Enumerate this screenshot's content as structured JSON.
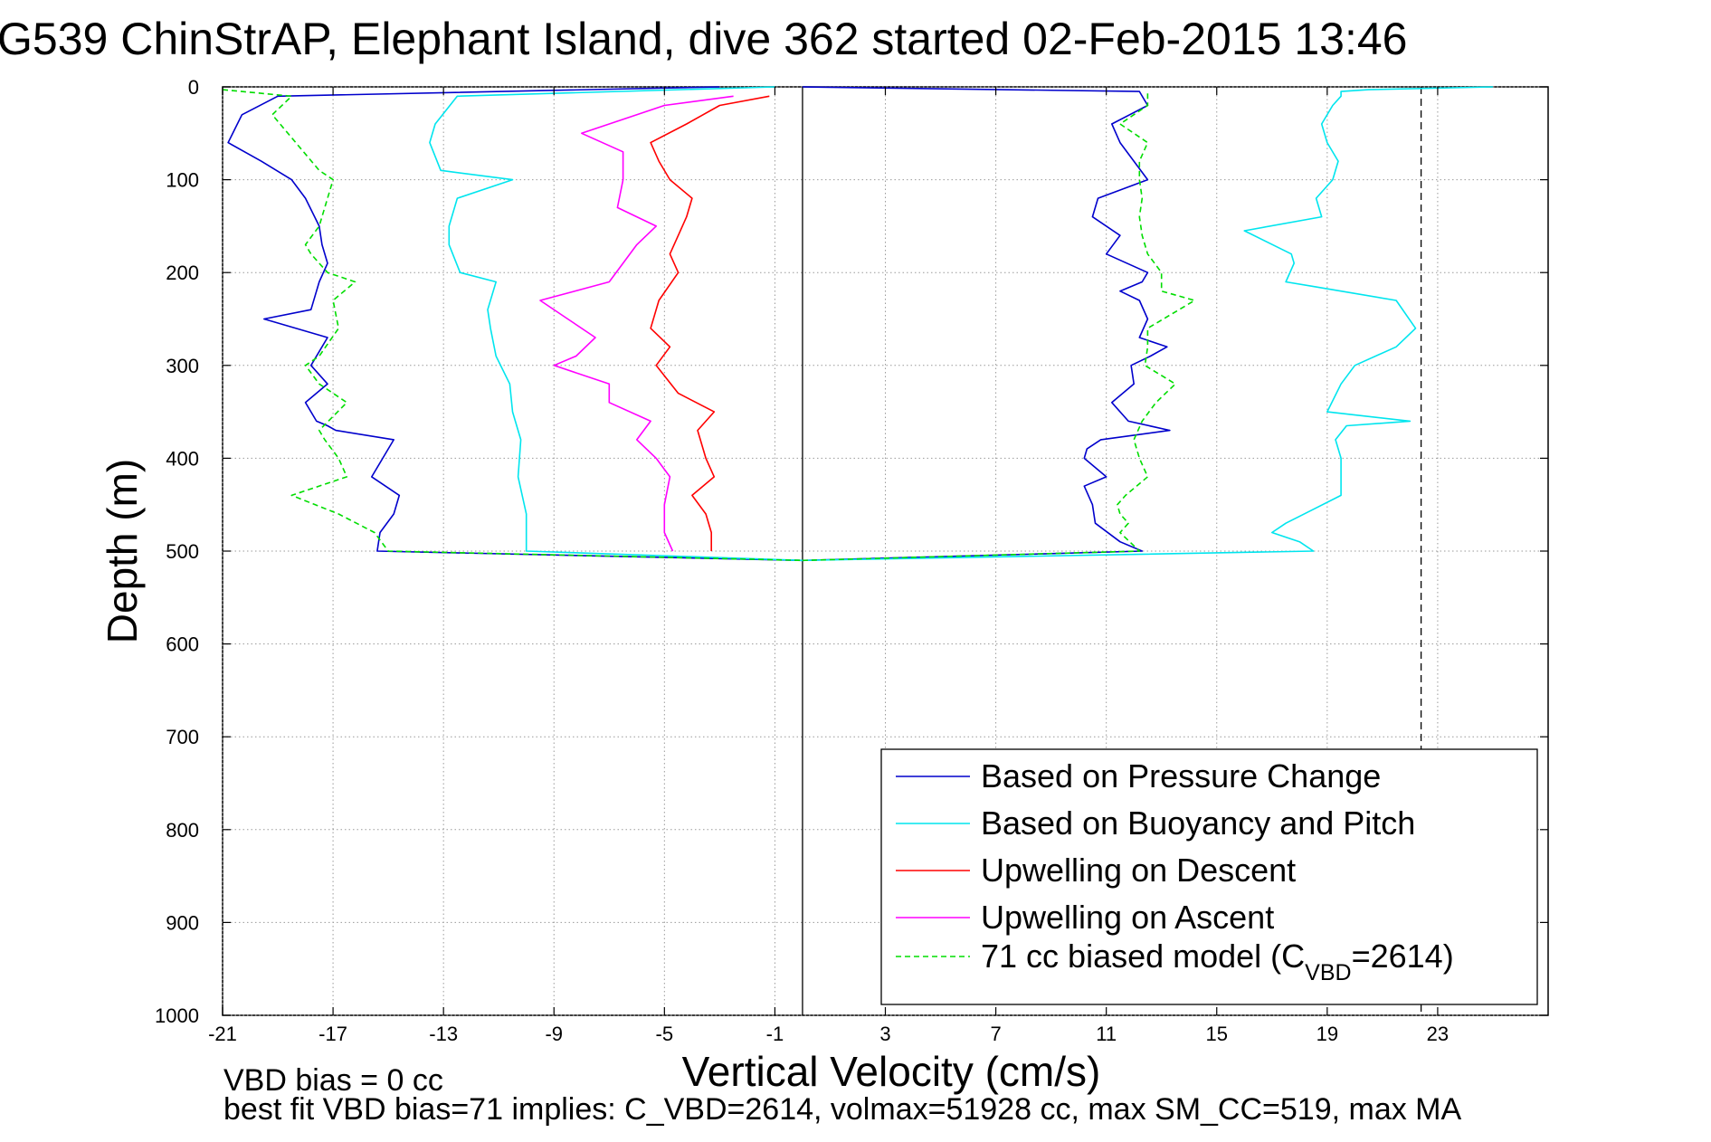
{
  "chart_data": {
    "type": "line",
    "title": "G539 ChinStrAP, Elephant Island, dive 362 started 02-Feb-2015 13:46",
    "xlabel": "Vertical Velocity (cm/s)",
    "ylabel": "Depth (m)",
    "xlim": [
      -21,
      27
    ],
    "ylim": [
      0,
      1000
    ],
    "y_reversed": true,
    "grid": true,
    "xticks": [
      -21,
      -17,
      -13,
      -9,
      -5,
      -1,
      3,
      7,
      11,
      15,
      19,
      23
    ],
    "yticks": [
      0,
      100,
      200,
      300,
      400,
      500,
      600,
      700,
      800,
      900,
      1000
    ],
    "vertical_lines": [
      {
        "x": 0,
        "style": "solid",
        "color": "#000000"
      },
      {
        "x": 22.4,
        "style": "dashed",
        "color": "#000000"
      }
    ],
    "legend_position": "bottom-right",
    "legend": [
      {
        "label": "Based on Pressure Change",
        "color": "#0000cc",
        "dash": false
      },
      {
        "label": "Based on Buoyancy and Pitch",
        "color": "#00e5ee",
        "dash": false
      },
      {
        "label": "Upwelling on Descent",
        "color": "#ff0000",
        "dash": false
      },
      {
        "label": "Upwelling on Ascent",
        "color": "#ff00ff",
        "dash": false
      },
      {
        "label_pre": "71 cc biased model (C",
        "label_sub": "VBD",
        "label_post": "=2614)",
        "color": "#00dd00",
        "dash": true
      }
    ],
    "series": [
      {
        "name": "Based on Pressure Change (descent)",
        "color": "#0000cc",
        "dash": false,
        "x": [
          -3,
          -19,
          -20.3,
          -20.8,
          -19.6,
          -18.5,
          -18,
          -17.5,
          -17.4,
          -17.2,
          -17.5,
          -17.8,
          -19.5,
          -17.2,
          -17.8,
          -17.2,
          -18,
          -17.6,
          -17.2,
          -16.9,
          -14.8,
          -15.2,
          -15.6,
          -14.6,
          -14.8,
          -15.3,
          -15.4,
          0
        ],
        "y": [
          0,
          10,
          30,
          60,
          80,
          100,
          120,
          150,
          170,
          190,
          210,
          240,
          250,
          270,
          300,
          320,
          340,
          360,
          365,
          370,
          380,
          400,
          420,
          440,
          460,
          480,
          500,
          510
        ]
      },
      {
        "name": "Based on Pressure Change (ascent)",
        "color": "#0000cc",
        "dash": false,
        "x": [
          0,
          12.3,
          11.5,
          10.6,
          10.5,
          10.2,
          11,
          10.2,
          10.3,
          10.8,
          13.3,
          11.8,
          11.2,
          12,
          11.9,
          12.6,
          13.2,
          12.2,
          12.5,
          12.2,
          11.5,
          12.3,
          12.5,
          11,
          11.5,
          10.5,
          10.7,
          12.5,
          11.5,
          11.2,
          12.5,
          12.2,
          0
        ],
        "y": [
          510,
          500,
          490,
          470,
          450,
          430,
          420,
          400,
          390,
          380,
          370,
          360,
          340,
          320,
          300,
          290,
          280,
          270,
          250,
          230,
          220,
          210,
          200,
          180,
          160,
          140,
          120,
          100,
          60,
          40,
          20,
          5,
          0
        ]
      },
      {
        "name": "Based on Buoyancy and Pitch (descent)",
        "color": "#00e5ee",
        "dash": false,
        "x": [
          -1,
          -12.5,
          -13.3,
          -13.5,
          -13.1,
          -10.5,
          -12.5,
          -12.8,
          -12.8,
          -12.4,
          -11.1,
          -11.4,
          -11.3,
          -11.1,
          -10.6,
          -10.5,
          -10.2,
          -10.3,
          -10,
          -10,
          0
        ],
        "y": [
          0,
          10,
          40,
          60,
          90,
          100,
          120,
          150,
          170,
          200,
          210,
          240,
          260,
          290,
          320,
          350,
          380,
          420,
          460,
          500,
          510
        ]
      },
      {
        "name": "Based on Buoyancy and Pitch (ascent)",
        "color": "#00e5ee",
        "dash": false,
        "x": [
          0,
          18.5,
          18,
          17,
          17.5,
          18.5,
          19.5,
          19.5,
          19.5,
          19.3,
          19.7,
          22,
          19,
          19.5,
          20,
          21.5,
          22.2,
          21.5,
          18.5,
          17.5,
          17.8,
          17.7,
          16,
          18.8,
          18.6,
          19.2,
          19.4,
          19,
          18.8,
          19.2,
          19.5,
          19.5,
          20.5,
          25
        ],
        "y": [
          510,
          500,
          490,
          480,
          470,
          455,
          440,
          420,
          400,
          380,
          365,
          360,
          350,
          320,
          300,
          280,
          260,
          230,
          215,
          210,
          190,
          180,
          155,
          140,
          120,
          100,
          80,
          60,
          40,
          20,
          10,
          5,
          3,
          0
        ]
      },
      {
        "name": "Upwelling on Descent",
        "color": "#ff0000",
        "dash": false,
        "x": [
          -1.2,
          -3,
          -4.2,
          -5.5,
          -5.2,
          -4.8,
          -4,
          -4.2,
          -4.5,
          -4.8,
          -4.5,
          -5.2,
          -5.5,
          -4.8,
          -5.3,
          -4.5,
          -3.2,
          -3.8,
          -3.5,
          -3.2,
          -4,
          -3.5,
          -3.3,
          -3.3
        ],
        "y": [
          10,
          20,
          40,
          60,
          80,
          100,
          120,
          140,
          160,
          180,
          200,
          230,
          260,
          280,
          300,
          330,
          350,
          370,
          400,
          420,
          440,
          460,
          480,
          500
        ]
      },
      {
        "name": "Upwelling on Ascent",
        "color": "#ff00ff",
        "dash": false,
        "x": [
          -2.5,
          -5,
          -8,
          -6.5,
          -6.5,
          -6.7,
          -5.3,
          -6,
          -6.5,
          -7,
          -9.5,
          -8.5,
          -7.5,
          -8.2,
          -9,
          -7,
          -7,
          -5.5,
          -6,
          -5.3,
          -4.8,
          -5,
          -5,
          -4.7
        ],
        "y": [
          10,
          20,
          50,
          70,
          100,
          130,
          150,
          170,
          190,
          210,
          230,
          250,
          270,
          290,
          300,
          320,
          340,
          360,
          380,
          400,
          420,
          450,
          480,
          500
        ]
      },
      {
        "name": "71 cc biased model (ascent)",
        "color": "#00dd00",
        "dash": true,
        "x": [
          0,
          12.2,
          11.5,
          11.8,
          11.5,
          11.4,
          11.7,
          12.5,
          12.2,
          12,
          12.3,
          12.8,
          13.5,
          12.4,
          12.5,
          12.5,
          14.2,
          13,
          13,
          12.5,
          12.3,
          12.2,
          12.3,
          12.2,
          12.2,
          12.5,
          11.5,
          12.5,
          12.5
        ],
        "y": [
          510,
          500,
          480,
          470,
          460,
          450,
          440,
          420,
          400,
          380,
          360,
          340,
          320,
          300,
          280,
          260,
          230,
          220,
          200,
          180,
          160,
          140,
          120,
          100,
          80,
          60,
          40,
          20,
          5
        ]
      },
      {
        "name": "71 cc biased model (descent)",
        "color": "#00dd00",
        "dash": true,
        "x": [
          -21,
          -18.5,
          -19.2,
          -17.5,
          -17,
          -17.5,
          -18,
          -17.8,
          -17.2,
          -16.2,
          -17,
          -16.8,
          -17.5,
          -18,
          -17.5,
          -16.5,
          -17.5,
          -17.3,
          -16.8,
          -16.5,
          -18.5,
          -16.8,
          -15.5,
          -15,
          0
        ],
        "y": [
          3,
          10,
          30,
          90,
          100,
          150,
          170,
          180,
          200,
          210,
          230,
          260,
          290,
          300,
          320,
          340,
          370,
          380,
          400,
          420,
          440,
          460,
          480,
          500,
          510
        ]
      }
    ],
    "annotations": {
      "line1": "VBD bias = 0 cc",
      "line2": "best fit VBD bias=71 implies: C_VBD=2614, volmax=51928 cc, max SM_CC=519, max MA"
    }
  }
}
